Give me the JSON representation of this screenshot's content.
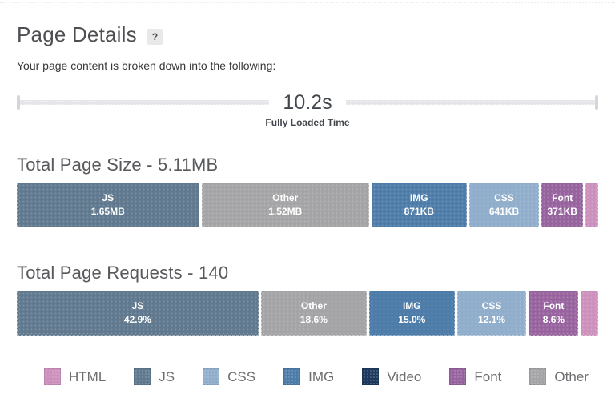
{
  "header": {
    "title": "Page Details",
    "help_glyph": "?",
    "subtitle": "Your page content is broken down into the following:"
  },
  "timeline": {
    "value": "10.2s",
    "caption": "Fully Loaded Time"
  },
  "colors": {
    "html": "#cc90bc",
    "js": "#60798e",
    "css": "#90aecb",
    "img": "#4d7ca9",
    "video": "#1d3a5e",
    "font": "#97639f",
    "other": "#a4a4a6"
  },
  "chart_data": [
    {
      "type": "bar",
      "subtype": "stacked-horizontal",
      "title": "Total Page Size - 5.11MB",
      "total_label": "5.11MB",
      "segments": [
        {
          "type": "js",
          "label": "JS",
          "value": "1.65MB",
          "percent": 32.3
        },
        {
          "type": "other",
          "label": "Other",
          "value": "1.52MB",
          "percent": 29.7
        },
        {
          "type": "img",
          "label": "IMG",
          "value": "871KB",
          "percent": 16.7
        },
        {
          "type": "css",
          "label": "CSS",
          "value": "641KB",
          "percent": 12.3
        },
        {
          "type": "font",
          "label": "Font",
          "value": "371KB",
          "percent": 7.1
        },
        {
          "type": "html",
          "label": "",
          "value": "",
          "percent": 2.0
        }
      ]
    },
    {
      "type": "bar",
      "subtype": "stacked-horizontal",
      "title": "Total Page Requests - 140",
      "total_label": "140",
      "segments": [
        {
          "type": "js",
          "label": "JS",
          "value": "42.9%",
          "percent": 42.9
        },
        {
          "type": "other",
          "label": "Other",
          "value": "18.6%",
          "percent": 18.6
        },
        {
          "type": "img",
          "label": "IMG",
          "value": "15.0%",
          "percent": 15.0
        },
        {
          "type": "css",
          "label": "CSS",
          "value": "12.1%",
          "percent": 12.1
        },
        {
          "type": "font",
          "label": "Font",
          "value": "8.6%",
          "percent": 8.6
        },
        {
          "type": "html",
          "label": "",
          "value": "",
          "percent": 2.8
        }
      ]
    }
  ],
  "legend": [
    {
      "type": "html",
      "label": "HTML"
    },
    {
      "type": "js",
      "label": "JS"
    },
    {
      "type": "css",
      "label": "CSS"
    },
    {
      "type": "img",
      "label": "IMG"
    },
    {
      "type": "video",
      "label": "Video"
    },
    {
      "type": "font",
      "label": "Font"
    },
    {
      "type": "other",
      "label": "Other"
    }
  ]
}
